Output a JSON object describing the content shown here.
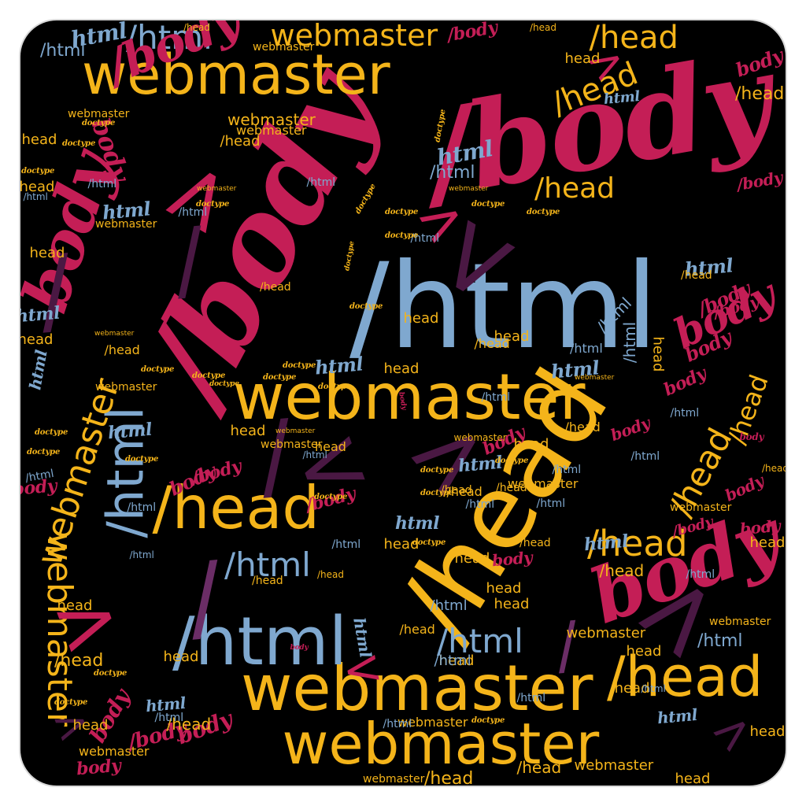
{
  "palette": {
    "yellow": "#f4b41a",
    "crimson": "#c41e56",
    "blue": "#7fa8cf",
    "plum": "#4a1843",
    "purple": "#6b2d66",
    "background": "#000000"
  },
  "words": [
    {
      "text": "/body",
      "color": "crimson",
      "style": "script"
    },
    {
      "text": "body",
      "color": "crimson",
      "style": "script"
    },
    {
      "text": "/html",
      "color": "blue",
      "style": "sans"
    },
    {
      "text": "/head",
      "color": "yellow",
      "style": "sans"
    },
    {
      "text": "head",
      "color": "yellow",
      "style": "sans"
    },
    {
      "text": "webmaster",
      "color": "yellow",
      "style": "sans"
    },
    {
      "text": ">",
      "color": "plum",
      "style": "sans"
    },
    {
      "text": "<",
      "color": "plum",
      "style": "sans"
    },
    {
      "text": "/",
      "color": "plum",
      "style": "sans"
    },
    {
      "text": "html",
      "color": "blue",
      "style": "script"
    },
    {
      "text": "doctype",
      "color": "yellow",
      "style": "script"
    }
  ]
}
